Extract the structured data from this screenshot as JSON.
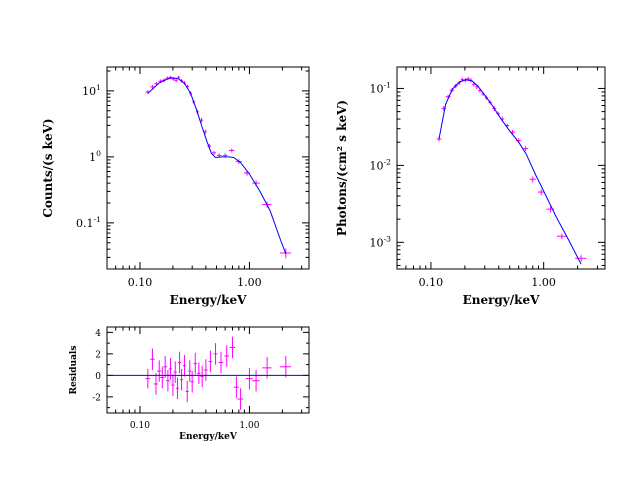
{
  "colors": {
    "data": "#ff00ff",
    "model": "#0000ff",
    "axes": "#000000"
  },
  "chart_data": [
    {
      "type": "scatter",
      "xscale": "log",
      "yscale": "log",
      "xlim": [
        0.05,
        3.5
      ],
      "ylim": [
        0.02,
        23
      ],
      "xlabel": "Energy/keV",
      "ylabel": "Counts/(s keV)",
      "xticklabels": [
        "0.10",
        "1.00"
      ],
      "yticklabels": [
        "10",
        "1",
        "0.1"
      ],
      "yticklabel_exp": [
        "1",
        "0",
        "-1"
      ],
      "series": [
        {
          "kind": "data",
          "points": [
            [
              0.118,
              9.6,
              0.006,
              0.7
            ],
            [
              0.13,
              11.5,
              0.006,
              0.8
            ],
            [
              0.142,
              12.8,
              0.007,
              0.8
            ],
            [
              0.154,
              14.0,
              0.007,
              0.9
            ],
            [
              0.166,
              14.5,
              0.007,
              0.9
            ],
            [
              0.178,
              15.6,
              0.007,
              0.9
            ],
            [
              0.19,
              16.0,
              0.007,
              0.9
            ],
            [
              0.202,
              15.1,
              0.007,
              0.9
            ],
            [
              0.214,
              14.3,
              0.007,
              0.9
            ],
            [
              0.226,
              16.1,
              0.007,
              0.9
            ],
            [
              0.24,
              14.2,
              0.008,
              0.9
            ],
            [
              0.255,
              13.2,
              0.008,
              0.9
            ],
            [
              0.272,
              11.6,
              0.009,
              0.8
            ],
            [
              0.29,
              9.2,
              0.009,
              0.7
            ],
            [
              0.31,
              6.8,
              0.01,
              0.5
            ],
            [
              0.335,
              4.8,
              0.012,
              0.4
            ],
            [
              0.365,
              3.6,
              0.014,
              0.3
            ],
            [
              0.395,
              2.4,
              0.015,
              0.2
            ],
            [
              0.43,
              1.45,
              0.017,
              0.12
            ],
            [
              0.475,
              1.15,
              0.02,
              0.08
            ],
            [
              0.53,
              1.05,
              0.025,
              0.08
            ],
            [
              0.6,
              1.05,
              0.03,
              0.08
            ],
            [
              0.69,
              1.25,
              0.04,
              0.09
            ],
            [
              0.8,
              0.85,
              0.05,
              0.07
            ],
            [
              0.95,
              0.57,
              0.06,
              0.05
            ],
            [
              1.15,
              0.4,
              0.09,
              0.04
            ],
            [
              1.45,
              0.19,
              0.14,
              0.02
            ],
            [
              2.15,
              0.035,
              0.25,
              0.006
            ]
          ]
        },
        {
          "kind": "model",
          "points": [
            [
              0.118,
              9.2
            ],
            [
              0.13,
              10.6
            ],
            [
              0.15,
              13.2
            ],
            [
              0.175,
              15.0
            ],
            [
              0.2,
              15.8
            ],
            [
              0.225,
              15.2
            ],
            [
              0.255,
              13.0
            ],
            [
              0.29,
              9.2
            ],
            [
              0.33,
              5.1
            ],
            [
              0.37,
              2.8
            ],
            [
              0.41,
              1.7
            ],
            [
              0.45,
              1.12
            ],
            [
              0.49,
              0.98
            ],
            [
              0.56,
              1.0
            ],
            [
              0.64,
              1.0
            ],
            [
              0.72,
              0.98
            ],
            [
              0.83,
              0.82
            ],
            [
              1.0,
              0.55
            ],
            [
              1.25,
              0.3
            ],
            [
              1.55,
              0.15
            ],
            [
              1.9,
              0.058
            ],
            [
              2.15,
              0.034
            ]
          ]
        }
      ]
    },
    {
      "type": "scatter",
      "xscale": "log",
      "yscale": "log",
      "xlim": [
        0.05,
        3.5
      ],
      "ylim": [
        0.00045,
        0.19
      ],
      "xlabel": "Energy/keV",
      "ylabel": "Photons/(cm² s keV)",
      "xticklabels": [
        "0.10",
        "1.00"
      ],
      "yticklabels": [
        "10",
        "10",
        "10"
      ],
      "yticklabel_exp": [
        "-1",
        "-2",
        "-3"
      ],
      "series": [
        {
          "kind": "data",
          "points": [
            [
              0.118,
              0.022,
              0.006,
              0.0015
            ],
            [
              0.13,
              0.055,
              0.006,
              0.004
            ],
            [
              0.142,
              0.078,
              0.007,
              0.005
            ],
            [
              0.154,
              0.095,
              0.007,
              0.006
            ],
            [
              0.166,
              0.108,
              0.007,
              0.007
            ],
            [
              0.178,
              0.118,
              0.007,
              0.007
            ],
            [
              0.19,
              0.13,
              0.007,
              0.008
            ],
            [
              0.202,
              0.128,
              0.007,
              0.008
            ],
            [
              0.214,
              0.133,
              0.007,
              0.008
            ],
            [
              0.226,
              0.128,
              0.007,
              0.008
            ],
            [
              0.24,
              0.113,
              0.008,
              0.007
            ],
            [
              0.255,
              0.105,
              0.008,
              0.007
            ],
            [
              0.272,
              0.094,
              0.009,
              0.006
            ],
            [
              0.29,
              0.085,
              0.009,
              0.005
            ],
            [
              0.31,
              0.076,
              0.01,
              0.005
            ],
            [
              0.335,
              0.066,
              0.012,
              0.004
            ],
            [
              0.365,
              0.055,
              0.014,
              0.004
            ],
            [
              0.395,
              0.047,
              0.015,
              0.003
            ],
            [
              0.43,
              0.04,
              0.017,
              0.003
            ],
            [
              0.475,
              0.033,
              0.02,
              0.002
            ],
            [
              0.53,
              0.027,
              0.025,
              0.002
            ],
            [
              0.6,
              0.021,
              0.03,
              0.0015
            ],
            [
              0.69,
              0.0165,
              0.04,
              0.0012
            ],
            [
              0.8,
              0.0066,
              0.05,
              0.0006
            ],
            [
              0.95,
              0.0045,
              0.06,
              0.0004
            ],
            [
              1.15,
              0.0027,
              0.09,
              0.00025
            ],
            [
              1.45,
              0.0012,
              0.14,
              0.0001
            ],
            [
              2.15,
              0.00062,
              0.25,
              6e-05
            ]
          ]
        },
        {
          "kind": "model",
          "points": [
            [
              0.118,
              0.022
            ],
            [
              0.135,
              0.062
            ],
            [
              0.155,
              0.098
            ],
            [
              0.18,
              0.122
            ],
            [
              0.205,
              0.13
            ],
            [
              0.23,
              0.126
            ],
            [
              0.26,
              0.108
            ],
            [
              0.3,
              0.082
            ],
            [
              0.35,
              0.06
            ],
            [
              0.42,
              0.04
            ],
            [
              0.5,
              0.028
            ],
            [
              0.6,
              0.02
            ],
            [
              0.7,
              0.014
            ],
            [
              0.85,
              0.0075
            ],
            [
              1.05,
              0.004
            ],
            [
              1.3,
              0.0021
            ],
            [
              1.65,
              0.0011
            ],
            [
              2.15,
              0.00052
            ]
          ]
        }
      ]
    },
    {
      "type": "scatter",
      "xscale": "log",
      "yscale": "linear",
      "xlim": [
        0.05,
        3.5
      ],
      "ylim": [
        -3.5,
        4.5
      ],
      "xlabel": "Energy/keV",
      "ylabel": "Residuals",
      "xticklabels": [
        "0.10",
        "1.00"
      ],
      "yticklabels": [
        "4",
        "2",
        "0",
        "-2"
      ],
      "series": [
        {
          "kind": "data",
          "points": [
            [
              0.118,
              -0.3,
              0.006,
              0.9
            ],
            [
              0.13,
              1.5,
              0.006,
              1.0
            ],
            [
              0.14,
              -0.8,
              0.006,
              1.0
            ],
            [
              0.15,
              0.4,
              0.007,
              1.0
            ],
            [
              0.16,
              -0.2,
              0.007,
              1.0
            ],
            [
              0.17,
              0.8,
              0.007,
              1.0
            ],
            [
              0.18,
              -0.5,
              0.007,
              1.0
            ],
            [
              0.19,
              0.6,
              0.007,
              1.0
            ],
            [
              0.2,
              -0.9,
              0.007,
              1.0
            ],
            [
              0.21,
              0.3,
              0.007,
              1.0
            ],
            [
              0.22,
              -1.2,
              0.007,
              1.0
            ],
            [
              0.23,
              1.2,
              0.007,
              1.0
            ],
            [
              0.24,
              -0.4,
              0.008,
              1.0
            ],
            [
              0.255,
              0.9,
              0.008,
              1.0
            ],
            [
              0.27,
              -1.5,
              0.009,
              1.0
            ],
            [
              0.285,
              0.4,
              0.009,
              1.0
            ],
            [
              0.3,
              -0.6,
              0.01,
              1.0
            ],
            [
              0.32,
              1.1,
              0.011,
              1.0
            ],
            [
              0.345,
              0.2,
              0.012,
              1.0
            ],
            [
              0.37,
              -0.1,
              0.013,
              1.0
            ],
            [
              0.4,
              0.5,
              0.015,
              1.0
            ],
            [
              0.44,
              1.3,
              0.017,
              1.0
            ],
            [
              0.49,
              2.0,
              0.02,
              1.0
            ],
            [
              0.55,
              1.2,
              0.025,
              1.0
            ],
            [
              0.62,
              1.8,
              0.03,
              1.0
            ],
            [
              0.7,
              2.6,
              0.04,
              1.0
            ],
            [
              0.76,
              -1.1,
              0.04,
              1.0
            ],
            [
              0.83,
              -2.2,
              0.05,
              1.0
            ],
            [
              1.0,
              -0.3,
              0.07,
              1.0
            ],
            [
              1.15,
              -0.5,
              0.09,
              1.0
            ],
            [
              1.45,
              0.7,
              0.14,
              1.0
            ],
            [
              2.15,
              0.8,
              0.25,
              1.0
            ]
          ]
        },
        {
          "kind": "model",
          "points": [
            [
              0.05,
              0
            ],
            [
              3.5,
              0
            ]
          ]
        }
      ]
    }
  ]
}
